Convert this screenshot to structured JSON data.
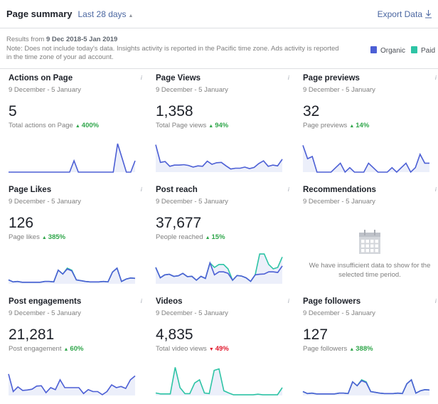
{
  "header": {
    "title": "Page summary",
    "range": "Last 28 days",
    "export": "Export Data"
  },
  "notes": {
    "results_prefix": "Results from ",
    "results_range": "9 Dec 2018-5 Jan 2019",
    "note": "Note: Does not include today's data. Insights activity is reported in the Pacific time zone. Ads activity is reported in the time zone of your ad account."
  },
  "legend": [
    {
      "label": "Organic",
      "color": "#4c5fd5"
    },
    {
      "label": "Paid",
      "color": "#2ec4a5"
    }
  ],
  "colors": {
    "organic": "#4c5fd5",
    "paid": "#2ec4a5",
    "fill": "#eceffa",
    "up": "#2fa64a",
    "down": "#e0162b"
  },
  "cards": [
    {
      "title": "Actions on Page",
      "date": "9 December - 5 January",
      "value": "5",
      "sub": "Total actions on Page",
      "change": "400%",
      "dir": "up",
      "max": 5.5,
      "organic": [
        0,
        0,
        0,
        0,
        0,
        0,
        0,
        0,
        0,
        0,
        0,
        0,
        0,
        0,
        0,
        2,
        0,
        0,
        0,
        0,
        0,
        0,
        0,
        0,
        0,
        5,
        2.5,
        0,
        0,
        2
      ]
    },
    {
      "title": "Page Views",
      "date": "9 December - 5 January",
      "value": "1,358",
      "sub": "Total Page views",
      "change": "94%",
      "dir": "up",
      "max": 8,
      "organic": [
        7,
        2.5,
        2.7,
        1.5,
        1.8,
        1.8,
        1.9,
        1.7,
        1.3,
        1.6,
        1.5,
        2.8,
        2,
        2.4,
        2.5,
        1.6,
        0.8,
        1,
        1,
        1.3,
        0.9,
        1.2,
        2.2,
        2.9,
        1.5,
        1.8,
        1.6,
        3.3
      ]
    },
    {
      "title": "Page previews",
      "date": "9 December - 5 January",
      "value": "32",
      "sub": "Page previews",
      "change": "14%",
      "dir": "up",
      "max": 7,
      "organic": [
        6,
        3,
        3.5,
        0,
        0,
        0,
        0,
        1,
        2,
        0,
        1,
        0,
        0,
        0,
        2,
        1,
        0,
        0,
        0,
        1,
        0,
        1,
        2,
        0,
        1,
        4,
        2,
        2
      ]
    },
    {
      "title": "Page Likes",
      "date": "9 December - 5 January",
      "value": "126",
      "sub": "Page likes",
      "change": "385%",
      "dir": "up",
      "max": 8,
      "organic": [
        1,
        0.5,
        0.6,
        0.4,
        0.4,
        0.4,
        0.4,
        0.4,
        0.6,
        0.6,
        0.5,
        3.5,
        2.5,
        3.8,
        3.3,
        1,
        0.8,
        0.6,
        0.5,
        0.5,
        0.5,
        0.6,
        0.5,
        3,
        4,
        0.6,
        1.2,
        1.5,
        1.4
      ],
      "paid": [
        1,
        0.5,
        0.6,
        0.4,
        0.4,
        0.4,
        0.4,
        0.4,
        0.6,
        0.6,
        0.5,
        3.5,
        2.5,
        4,
        3.5,
        1,
        0.8,
        0.6,
        0.5,
        0.5,
        0.5,
        0.6,
        0.5,
        3,
        4,
        0.6,
        1.2,
        1.5,
        1.4
      ]
    },
    {
      "title": "Post reach",
      "date": "9 December - 5 January",
      "value": "37,677",
      "sub": "People reached",
      "change": "15%",
      "dir": "up",
      "max": 10.5,
      "organic": [
        5.5,
        2,
        3,
        3.2,
        2.5,
        2.7,
        3.5,
        2.4,
        2.5,
        1.2,
        2.5,
        1.8,
        7,
        3,
        4,
        4,
        3.5,
        1.2,
        2.8,
        2.6,
        2,
        0.8,
        3,
        3.2,
        3.3,
        4,
        4,
        3.8,
        6
      ],
      "paid": [
        5.5,
        2,
        3,
        3.2,
        2.5,
        2.7,
        3.5,
        2.4,
        2.5,
        1.2,
        2.5,
        1.8,
        7,
        5.5,
        6.5,
        6.5,
        5,
        1.2,
        2.8,
        2.6,
        2,
        0.8,
        3,
        10,
        10,
        6.5,
        5,
        5.5,
        9
      ]
    },
    {
      "title": "Recommendations",
      "date": "9 December - 5 January",
      "empty": "We have insufficient data to show for the selected time period."
    },
    {
      "title": "Post engagements",
      "date": "9 December - 5 January",
      "value": "21,281",
      "sub": "Post engagement",
      "change": "60%",
      "dir": "up",
      "max": 8,
      "organic": [
        5.5,
        1,
        2.2,
        1.3,
        1.4,
        1.6,
        2.4,
        2.5,
        0.7,
        2,
        1.5,
        4,
        2,
        2,
        2,
        2,
        0.5,
        1.5,
        1,
        1,
        0.2,
        1,
        2.7,
        2,
        2.3,
        1.8,
        4,
        5
      ]
    },
    {
      "title": "Videos",
      "date": "9 December - 5 January",
      "value": "4,835",
      "sub": "Total video views",
      "change": "49%",
      "dir": "down",
      "max": 10,
      "paid": [
        0.8,
        0.5,
        0.5,
        0.5,
        9,
        2.5,
        0.6,
        0.6,
        4,
        5,
        0.8,
        0.6,
        8,
        8.5,
        1.5,
        0.8,
        0.2,
        0.2,
        0.2,
        0.2,
        0.2,
        0.4,
        0.2,
        0.2,
        0.2,
        0.2,
        2.5
      ]
    },
    {
      "title": "Page followers",
      "date": "9 December - 5 January",
      "value": "127",
      "sub": "Page followers",
      "change": "388%",
      "dir": "up",
      "max": 8,
      "organic": [
        1,
        0.5,
        0.6,
        0.4,
        0.4,
        0.4,
        0.4,
        0.4,
        0.6,
        0.6,
        0.5,
        3.5,
        2.5,
        3.8,
        3.3,
        1,
        0.8,
        0.6,
        0.5,
        0.5,
        0.5,
        0.6,
        0.5,
        3,
        4,
        0.6,
        1.2,
        1.5,
        1.4
      ],
      "paid": [
        1,
        0.5,
        0.6,
        0.4,
        0.4,
        0.4,
        0.4,
        0.4,
        0.6,
        0.6,
        0.5,
        3.5,
        2.5,
        4,
        3.5,
        1,
        0.8,
        0.6,
        0.5,
        0.5,
        0.5,
        0.6,
        0.5,
        3,
        4,
        0.6,
        1.2,
        1.5,
        1.4
      ]
    }
  ]
}
